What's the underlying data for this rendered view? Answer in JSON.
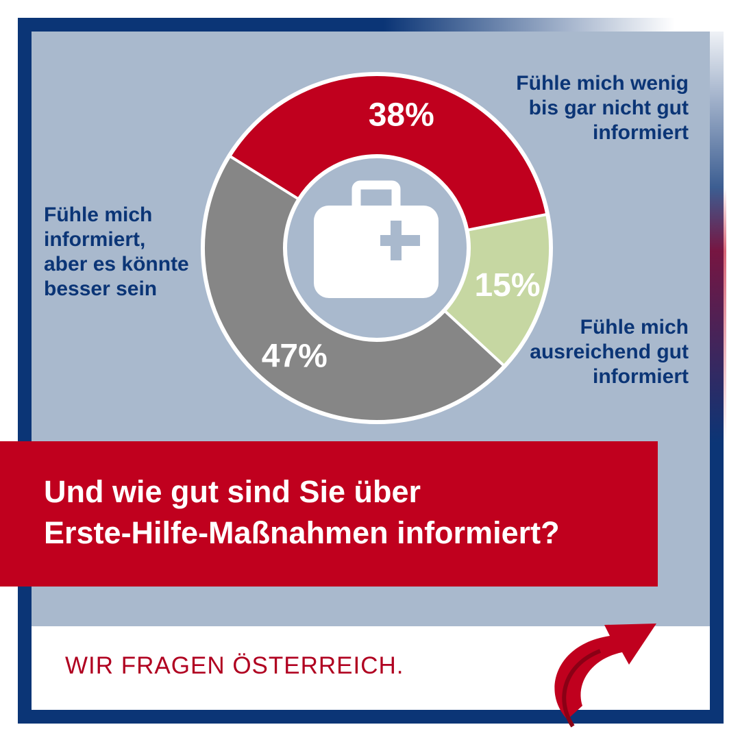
{
  "chart_data": {
    "type": "pie",
    "variant": "donut",
    "title": "Und wie gut sind Sie über Erste-Hilfe-Maßnahmen informiert?",
    "title_lines": [
      "Und wie gut sind Sie über",
      "Erste-Hilfe-Maßnahmen informiert?"
    ],
    "slices": [
      {
        "name": "Fühle mich wenig bis gar nicht gut informiert",
        "lines": [
          "Fühle mich wenig",
          "bis gar nicht gut",
          "informiert"
        ],
        "value": 38,
        "label": "38%",
        "color": "#c0001e"
      },
      {
        "name": "Fühle mich ausreichend gut informiert",
        "lines": [
          "Fühle mich",
          "ausreichend gut",
          "informiert"
        ],
        "value": 15,
        "label": "15%",
        "color": "#c6d7a2"
      },
      {
        "name": "Fühle mich informiert, aber es könnte besser sein",
        "lines": [
          "Fühle mich",
          "informiert,",
          "aber es könnte",
          "besser sein"
        ],
        "value": 47,
        "label": "47%",
        "color": "#868686"
      }
    ],
    "center_icon": "first-aid-kit-icon",
    "legend": "none"
  },
  "brand": {
    "text": "WIR FRAGEN ÖSTERREICH.",
    "logo_icon": "curved-arrow-icon",
    "colors": {
      "navy": "#0b3576",
      "red": "#c0001e",
      "panel": "#a9b9cd"
    }
  }
}
